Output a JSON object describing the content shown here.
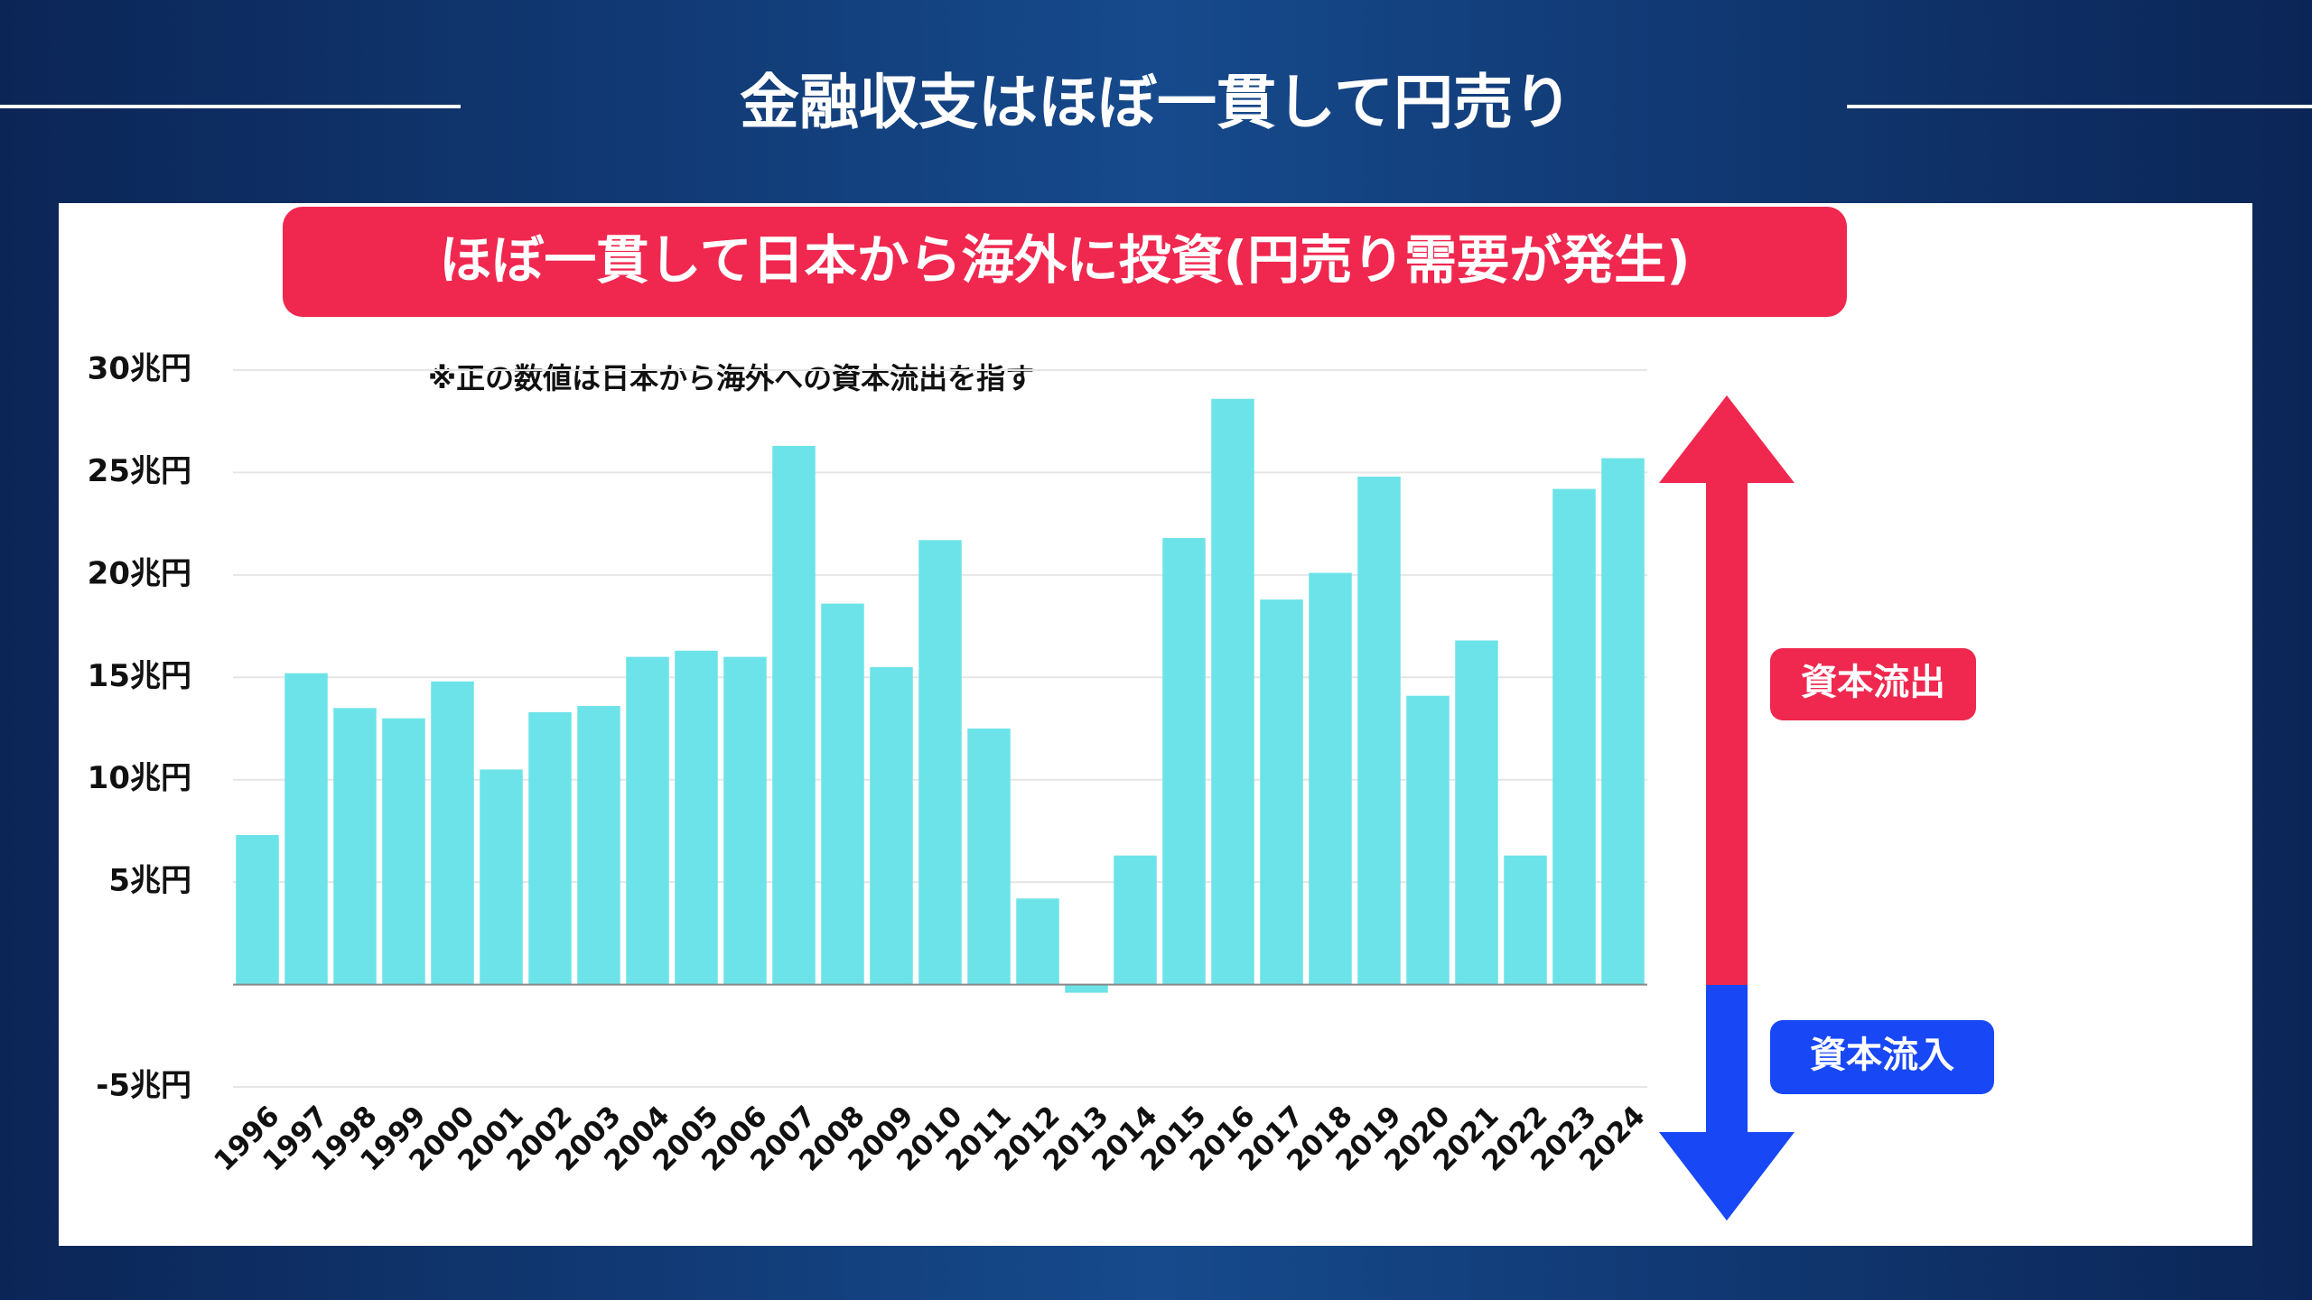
{
  "header": {
    "title": "金融収支はほぼ一貫して円売り"
  },
  "chart_data": {
    "type": "bar",
    "title": "ほぼ一貫して日本から海外に投資(円売り需要が発生)",
    "note": "※正の数値は日本から海外への資本流出を指す",
    "outflow_label": "資本流出",
    "inflow_label": "資本流入",
    "categories": [
      "1996",
      "1997",
      "1998",
      "1999",
      "2000",
      "2001",
      "2002",
      "2003",
      "2004",
      "2005",
      "2006",
      "2007",
      "2008",
      "2009",
      "2010",
      "2011",
      "2012",
      "2013",
      "2014",
      "2015",
      "2016",
      "2017",
      "2018",
      "2019",
      "2020",
      "2021",
      "2022",
      "2023",
      "2024"
    ],
    "values": [
      7.3,
      15.2,
      13.5,
      13.0,
      14.8,
      10.5,
      13.3,
      13.6,
      16.0,
      16.3,
      16.0,
      26.3,
      18.6,
      15.5,
      21.7,
      12.5,
      4.2,
      -0.4,
      6.3,
      21.8,
      28.6,
      18.8,
      20.1,
      24.8,
      14.1,
      16.8,
      6.3,
      24.2,
      25.7
    ],
    "color": "#6ce3e8",
    "ylim": [
      -5,
      30
    ],
    "yticks": [
      {
        "value": -5,
        "label": "-5兆円"
      },
      {
        "value": 5,
        "label": "5兆円"
      },
      {
        "value": 10,
        "label": "10兆円"
      },
      {
        "value": 15,
        "label": "15兆円"
      },
      {
        "value": 20,
        "label": "20兆円"
      },
      {
        "value": 25,
        "label": "25兆円"
      },
      {
        "value": 30,
        "label": "30兆円"
      }
    ],
    "grid": true
  }
}
